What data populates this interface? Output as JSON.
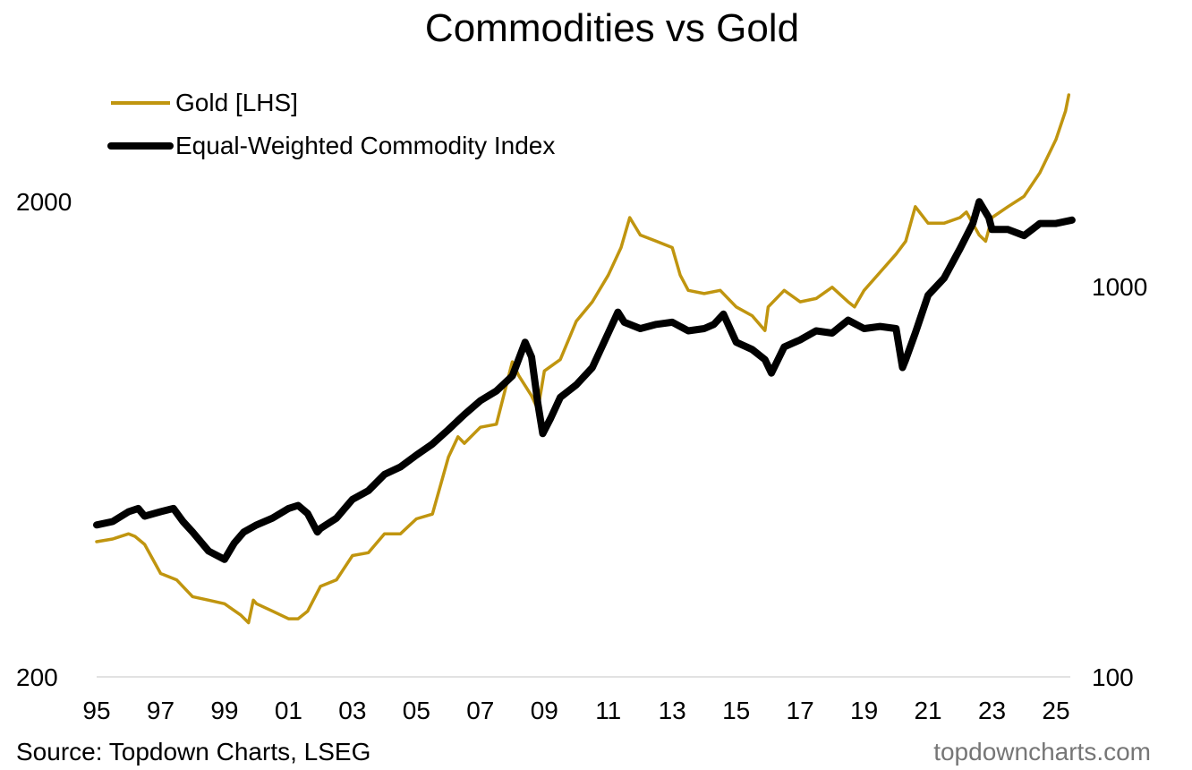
{
  "chart_data": {
    "type": "line",
    "title": "Commodities vs Gold",
    "xlabel": "",
    "ylabel_left": "",
    "ylabel_right": "",
    "x_tick_labels": [
      "95",
      "97",
      "99",
      "01",
      "03",
      "05",
      "07",
      "09",
      "11",
      "13",
      "15",
      "17",
      "19",
      "21",
      "23",
      "25"
    ],
    "x_range": [
      1995.0,
      2025.5
    ],
    "left_axis": {
      "scale": "log",
      "ylim": [
        200,
        3200
      ],
      "tick_labels": [
        "2000",
        "200"
      ],
      "tick_values": [
        2000,
        200
      ]
    },
    "right_axis": {
      "scale": "log",
      "ylim": [
        100,
        1900
      ],
      "tick_labels": [
        "1000",
        "100"
      ],
      "tick_values": [
        1000,
        100
      ]
    },
    "grid": false,
    "legend_position": "top-left",
    "series": [
      {
        "name": "Gold [LHS]",
        "axis": "left",
        "color": "#C0950F",
        "x": [
          1995.0,
          1995.5,
          1996.0,
          1996.2,
          1996.5,
          1997.0,
          1997.5,
          1998.0,
          1998.5,
          1999.0,
          1999.5,
          1999.75,
          1999.9,
          2000.0,
          2000.5,
          2001.0,
          2001.3,
          2001.6,
          2002.0,
          2002.5,
          2003.0,
          2003.5,
          2004.0,
          2004.5,
          2005.0,
          2005.5,
          2006.0,
          2006.3,
          2006.5,
          2007.0,
          2007.5,
          2008.0,
          2008.2,
          2008.6,
          2008.8,
          2009.0,
          2009.5,
          2010.0,
          2010.5,
          2011.0,
          2011.4,
          2011.67,
          2012.0,
          2012.5,
          2013.0,
          2013.25,
          2013.5,
          2014.0,
          2014.5,
          2015.0,
          2015.5,
          2015.9,
          2016.0,
          2016.5,
          2017.0,
          2017.5,
          2018.0,
          2018.5,
          2018.7,
          2019.0,
          2019.5,
          2020.0,
          2020.3,
          2020.6,
          2021.0,
          2021.5,
          2022.0,
          2022.2,
          2022.6,
          2022.8,
          2023.0,
          2023.5,
          2024.0,
          2024.5,
          2025.0,
          2025.3,
          2025.4
        ],
        "y": [
          385,
          390,
          400,
          395,
          380,
          330,
          320,
          295,
          290,
          285,
          270,
          260,
          290,
          285,
          275,
          265,
          265,
          275,
          310,
          320,
          360,
          365,
          400,
          400,
          430,
          440,
          580,
          640,
          620,
          670,
          680,
          920,
          860,
          780,
          730,
          880,
          930,
          1120,
          1230,
          1400,
          1600,
          1850,
          1700,
          1650,
          1600,
          1400,
          1300,
          1280,
          1300,
          1200,
          1150,
          1070,
          1200,
          1300,
          1230,
          1250,
          1320,
          1230,
          1200,
          1300,
          1420,
          1550,
          1650,
          1950,
          1800,
          1800,
          1850,
          1900,
          1700,
          1650,
          1850,
          1950,
          2050,
          2300,
          2700,
          3100,
          3350
        ]
      },
      {
        "name": "Equal-Weighted Commodity Index",
        "axis": "right",
        "color": "#000000",
        "x": [
          1995.0,
          1995.5,
          1996.0,
          1996.3,
          1996.5,
          1997.0,
          1997.4,
          1997.7,
          1998.0,
          1998.5,
          1999.0,
          1999.3,
          1999.6,
          2000.0,
          2000.5,
          2001.0,
          2001.3,
          2001.6,
          2001.9,
          2002.0,
          2002.5,
          2003.0,
          2003.5,
          2004.0,
          2004.5,
          2005.0,
          2005.5,
          2006.0,
          2006.5,
          2007.0,
          2007.5,
          2008.0,
          2008.4,
          2008.6,
          2008.8,
          2008.95,
          2009.2,
          2009.5,
          2010.0,
          2010.5,
          2011.0,
          2011.3,
          2011.5,
          2012.0,
          2012.5,
          2013.0,
          2013.5,
          2014.0,
          2014.3,
          2014.6,
          2015.0,
          2015.5,
          2015.9,
          2016.1,
          2016.5,
          2017.0,
          2017.5,
          2018.0,
          2018.5,
          2019.0,
          2019.5,
          2020.0,
          2020.2,
          2020.3,
          2020.6,
          2021.0,
          2021.5,
          2022.0,
          2022.4,
          2022.6,
          2022.9,
          2023.0,
          2023.5,
          2024.0,
          2024.5,
          2025.0,
          2025.5
        ],
        "y": [
          245,
          250,
          265,
          270,
          258,
          265,
          270,
          250,
          235,
          210,
          200,
          220,
          235,
          245,
          255,
          270,
          275,
          262,
          235,
          240,
          255,
          285,
          300,
          330,
          345,
          370,
          395,
          430,
          470,
          510,
          540,
          590,
          720,
          660,
          500,
          420,
          460,
          520,
          560,
          620,
          760,
          860,
          810,
          780,
          800,
          810,
          770,
          780,
          800,
          850,
          720,
          690,
          650,
          600,
          700,
          730,
          770,
          760,
          820,
          780,
          790,
          780,
          620,
          650,
          760,
          950,
          1050,
          1250,
          1450,
          1650,
          1500,
          1400,
          1400,
          1350,
          1450,
          1450,
          1480
        ]
      }
    ],
    "source": "Source: Topdown Charts, LSEG",
    "credit": "topdowncharts.com"
  }
}
